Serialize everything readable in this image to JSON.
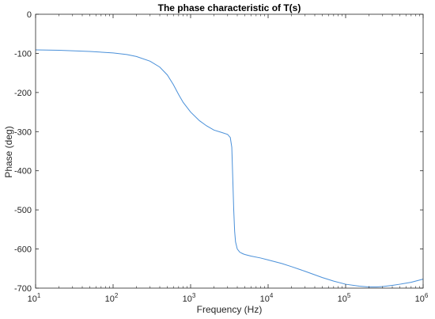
{
  "chart_data": {
    "type": "line",
    "title": "The phase characteristic of T(s)",
    "xlabel": "Frequency (Hz)",
    "ylabel": "Phase (deg)",
    "xscale": "log",
    "xlim": [
      10,
      1000000
    ],
    "ylim": [
      -700,
      0
    ],
    "grid": false,
    "line_color": "#4a90d9",
    "axis_color": "#262626",
    "x_ticks": [
      {
        "value": 10,
        "base": "10",
        "exp": "1"
      },
      {
        "value": 100,
        "base": "10",
        "exp": "2"
      },
      {
        "value": 1000,
        "base": "10",
        "exp": "3"
      },
      {
        "value": 10000,
        "base": "10",
        "exp": "4"
      },
      {
        "value": 100000,
        "base": "10",
        "exp": "5"
      },
      {
        "value": 1000000,
        "base": "10",
        "exp": "6"
      }
    ],
    "y_ticks": [
      {
        "value": 0,
        "label": "0"
      },
      {
        "value": -100,
        "label": "-100"
      },
      {
        "value": -200,
        "label": "-200"
      },
      {
        "value": -300,
        "label": "-300"
      },
      {
        "value": -400,
        "label": "-400"
      },
      {
        "value": -500,
        "label": "-500"
      },
      {
        "value": -600,
        "label": "-600"
      },
      {
        "value": -700,
        "label": "-700"
      }
    ],
    "series": [
      {
        "x": [
          10,
          20,
          50,
          100,
          150,
          200,
          300,
          400,
          500,
          600,
          700,
          800,
          1000,
          1300,
          1600,
          2000,
          2500,
          3000,
          3250,
          3400,
          3500,
          3600,
          3700,
          3800,
          4000,
          4300,
          4700,
          5000,
          6000,
          8000,
          10000,
          15000,
          20000,
          30000,
          50000,
          70000,
          100000,
          150000,
          200000,
          250000,
          300000,
          400000,
          500000,
          700000,
          1000000
        ],
        "y": [
          -91,
          -92,
          -95,
          -99,
          -103,
          -108,
          -120,
          -135,
          -155,
          -180,
          -205,
          -225,
          -250,
          -272,
          -285,
          -296,
          -302,
          -307,
          -315,
          -340,
          -420,
          -500,
          -555,
          -582,
          -600,
          -608,
          -612,
          -614,
          -618,
          -623,
          -628,
          -637,
          -645,
          -657,
          -673,
          -682,
          -690,
          -695,
          -697,
          -697,
          -696,
          -693,
          -690,
          -685,
          -677
        ]
      }
    ]
  }
}
